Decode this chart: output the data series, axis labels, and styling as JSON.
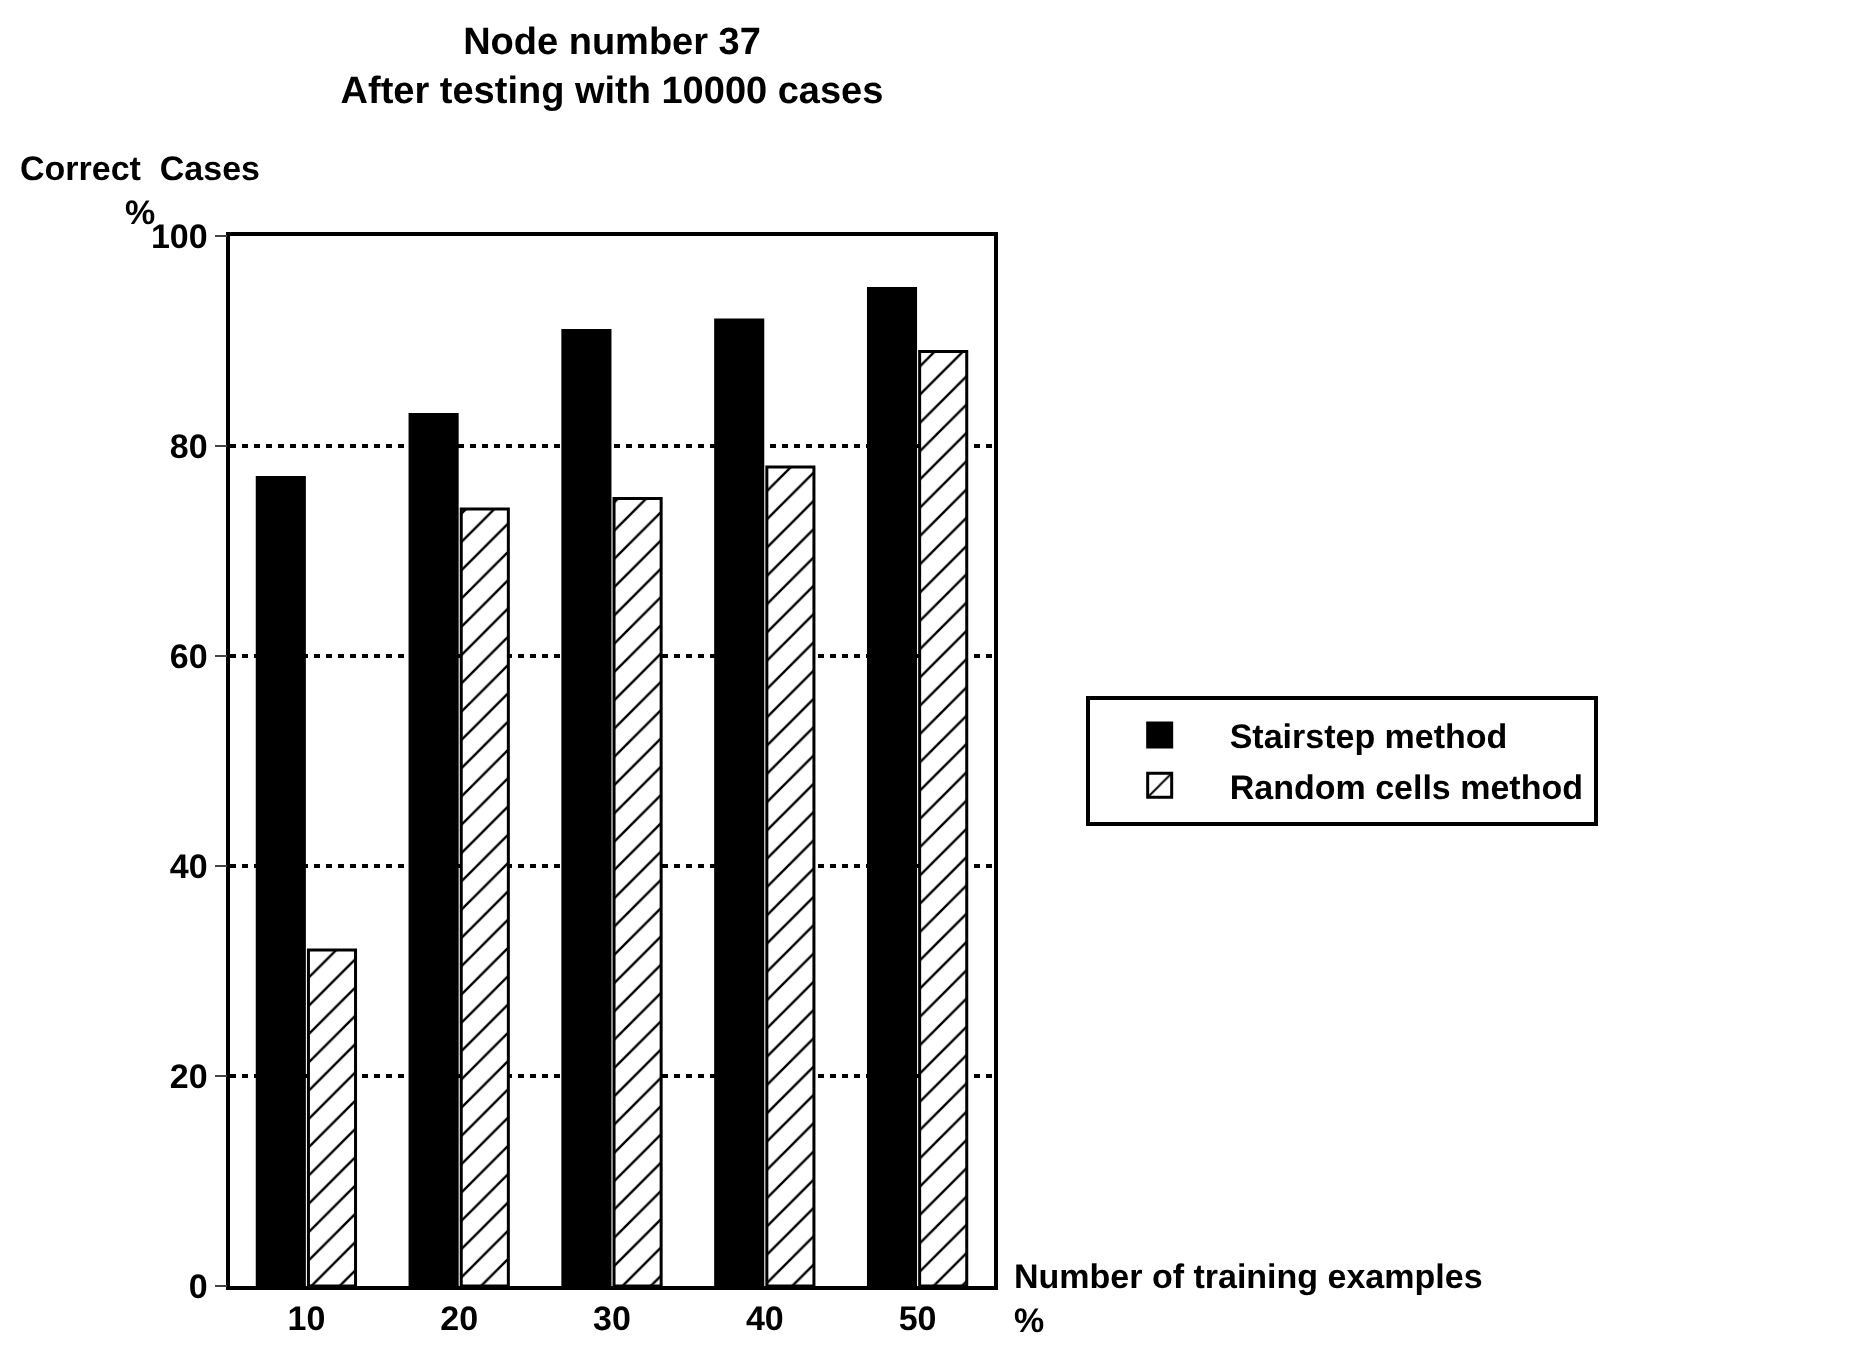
{
  "chart_data": {
    "type": "bar",
    "title": "Node number 37",
    "subtitle": "After testing with 10000 cases",
    "ylabel": "Correct  Cases\n%",
    "xlabel": "Number of training examples\n%",
    "categories": [
      "10",
      "20",
      "30",
      "40",
      "50"
    ],
    "series": [
      {
        "name": "Stairstep method",
        "color": "#000000",
        "values": [
          77,
          83,
          91,
          92,
          95
        ]
      },
      {
        "name": "Random cells method",
        "color": "#000000",
        "values": [
          32,
          74,
          75,
          78,
          89
        ]
      }
    ],
    "ylim": [
      0,
      100
    ],
    "yticks": [
      0,
      20,
      40,
      60,
      80,
      100
    ],
    "grid": "y",
    "legend": "right"
  }
}
